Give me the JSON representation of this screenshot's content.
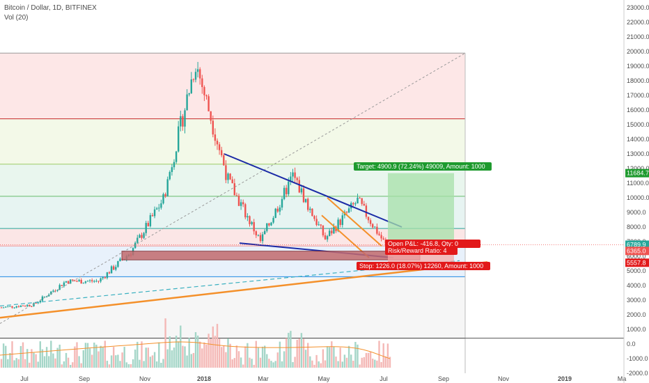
{
  "header": {
    "title": "Bitcoin / Dollar, 1D, BITFINEX",
    "volume": "Vol (20)"
  },
  "colors": {
    "up": "#26a69a",
    "down": "#ef5350",
    "trendline": "#1a2aa6",
    "orange": "#f4902a",
    "target": "#1e9a2e",
    "stop": "#e2191a"
  },
  "chart_data": {
    "type": "candlestick",
    "x_ticks": [
      "Jul",
      "Sep",
      "Nov",
      "2018",
      "Mar",
      "May",
      "Jul",
      "Sep",
      "Nov",
      "2019",
      "Ma"
    ],
    "y_ticks": [
      "23000.0",
      "22000.0",
      "21000.0",
      "20000.0",
      "19000.0",
      "18000.0",
      "17000.0",
      "16000.0",
      "15000.0",
      "14000.0",
      "13000.0",
      "12000.0",
      "11000.0",
      "10000.0",
      "9000.0",
      "8000.0",
      "7000.0",
      "6000.0",
      "5000.0",
      "4000.0",
      "3000.0",
      "2000.0",
      "1000.0",
      "0.0",
      "-1000.0",
      "-2000.0"
    ],
    "ylim": [
      -2300,
      23500
    ],
    "price_labels": [
      {
        "text": "11684.7",
        "value": 11684.7,
        "color": "#1e9a2e"
      },
      {
        "text": "6783.8",
        "value": 6783.8,
        "color": "#444444"
      },
      {
        "text": "6789.9",
        "value": 6789.9,
        "color": "#26a69a"
      },
      {
        "text": "6365.0",
        "value": 6365.0,
        "color": "#ef5350"
      },
      {
        "text": "5557.8",
        "value": 5557.8,
        "color": "#e2191a"
      }
    ],
    "fib_levels": [
      19891,
      15400,
      12300,
      10100,
      7900,
      6700,
      4600,
      400
    ],
    "price_series": [
      {
        "date": "2017-06",
        "close": 2500
      },
      {
        "date": "2017-07",
        "close": 2700
      },
      {
        "date": "2017-08",
        "close": 4300
      },
      {
        "date": "2017-09",
        "close": 4300
      },
      {
        "date": "2017-10",
        "close": 6300
      },
      {
        "date": "2017-11",
        "close": 9900
      },
      {
        "date": "2017-12",
        "close": 19300
      },
      {
        "date": "2018-01",
        "close": 11200
      },
      {
        "date": "2018-02",
        "close": 7000
      },
      {
        "date": "2018-03",
        "close": 11500
      },
      {
        "date": "2018-04",
        "close": 7200
      },
      {
        "date": "2018-05",
        "close": 9800
      },
      {
        "date": "2018-06",
        "close": 6300
      },
      {
        "date": "2018-07",
        "close": 6790
      }
    ],
    "annotations": {
      "target": "Target: 4900.9 (72.24%) 49009, Amount: 1000",
      "open_pl": "Open P&L: -416.8, Qty: 0",
      "risk_reward": "Risk/Reward Ratio: 4",
      "stop": "Stop: 1226.0 (18.07%) 12260, Amount: 1000"
    }
  }
}
